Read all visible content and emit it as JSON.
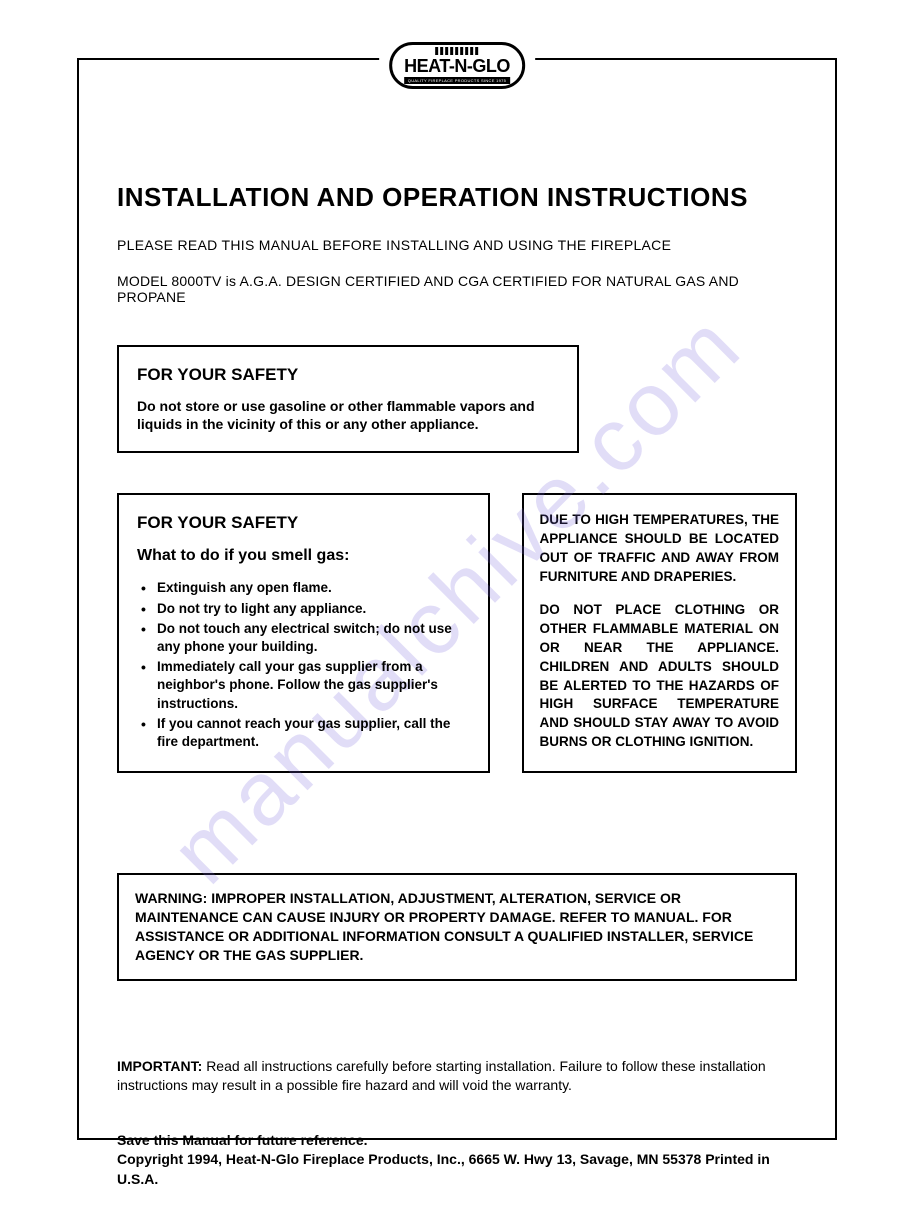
{
  "logo": {
    "text": "HEAT-N-GLO",
    "subtitle": "QUALITY FIREPLACE PRODUCTS SINCE 1975"
  },
  "main_title": "INSTALLATION AND OPERATION INSTRUCTIONS",
  "subtitle_1": "PLEASE READ THIS MANUAL BEFORE INSTALLING AND USING THE FIREPLACE",
  "subtitle_2": "MODEL 8000TV is A.G.A. DESIGN CERTIFIED AND CGA CERTIFIED FOR NATURAL GAS AND PROPANE",
  "safety_box_1": {
    "title": "FOR YOUR SAFETY",
    "text": "Do not store or use gasoline or other flammable vapors and liquids in the vicinity of this or any other appliance."
  },
  "safety_box_2": {
    "title": "FOR YOUR SAFETY",
    "subtitle": "What to do if you smell gas:",
    "items": [
      "Extinguish any open flame.",
      "Do not try to light any appliance.",
      "Do not touch any electrical switch; do not use any phone your building.",
      "Immediately call your gas supplier from a neighbor's phone. Follow the gas supplier's instructions.",
      "If you cannot reach your gas supplier, call the fire department."
    ]
  },
  "temp_box": {
    "para_1": "DUE TO HIGH TEMPERATURES, THE APPLIANCE SHOULD BE LOCATED OUT OF TRAFFIC AND AWAY FROM FURNITURE AND DRAPERIES.",
    "para_2": "DO NOT PLACE CLOTHING OR OTHER FLAMMABLE MATERIAL ON OR NEAR THE APPLIANCE. CHILDREN AND ADULTS SHOULD BE ALERTED TO THE HAZARDS OF HIGH SURFACE TEMPERATURE AND SHOULD STAY AWAY TO AVOID BURNS OR CLOTHING IGNITION."
  },
  "warning_box": {
    "label": "WARNING: ",
    "text": "IMPROPER INSTALLATION, ADJUSTMENT, ALTERATION, SERVICE OR MAINTENANCE CAN CAUSE INJURY OR PROPERTY DAMAGE. REFER TO MANUAL. FOR ASSISTANCE OR ADDITIONAL INFORMATION CONSULT A QUALIFIED INSTALLER, SERVICE AGENCY OR THE GAS SUPPLIER."
  },
  "important": {
    "label": "IMPORTANT: ",
    "text": "Read all instructions carefully before starting installation. Failure to follow these installation instructions may result in a possible fire hazard and will void the warranty."
  },
  "footer": {
    "line_1": "Save this Manual for future reference.",
    "line_2": "Copyright 1994, Heat-N-Glo Fireplace Products, Inc., 6665 W. Hwy 13, Savage, MN 55378 Printed in U.S.A."
  },
  "watermark": "manualchive.com"
}
